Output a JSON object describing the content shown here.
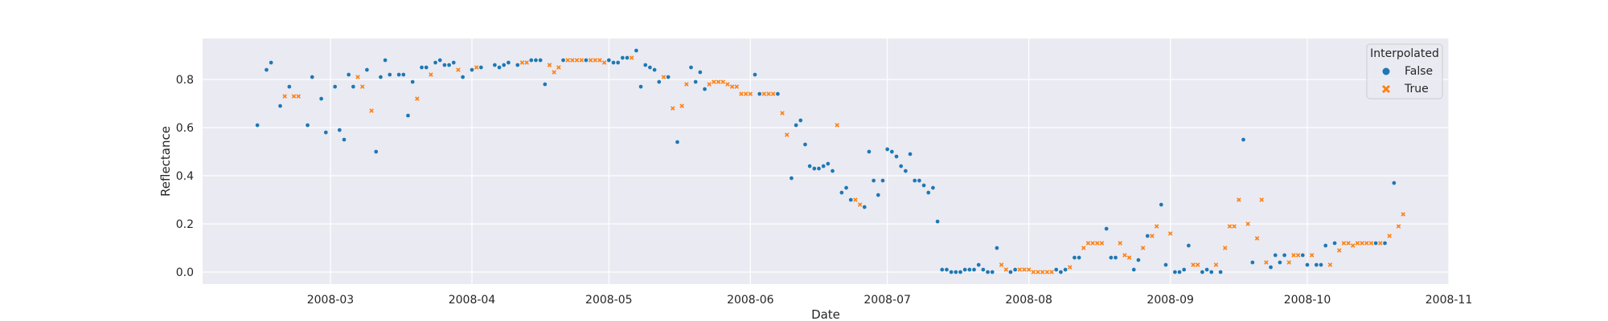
{
  "chart_data": {
    "type": "scatter",
    "xlabel": "Date",
    "ylabel": "Reflectance",
    "x_ticks": [
      "2008-03",
      "2008-04",
      "2008-05",
      "2008-06",
      "2008-07",
      "2008-08",
      "2008-09",
      "2008-10",
      "2008-11"
    ],
    "y_ticks": [
      "0.0",
      "0.2",
      "0.4",
      "0.6",
      "0.8"
    ],
    "xlim": [
      "2008-02-02",
      "2008-11-01"
    ],
    "ylim": [
      -0.05,
      0.97
    ],
    "grid": true,
    "legend": {
      "title": "Interpolated",
      "placement": "top-right"
    },
    "series": [
      {
        "name": "False",
        "marker": "circle",
        "color": "#1f77b4",
        "points": [
          [
            "2008-02-14",
            0.61
          ],
          [
            "2008-02-16",
            0.84
          ],
          [
            "2008-02-17",
            0.87
          ],
          [
            "2008-02-19",
            0.69
          ],
          [
            "2008-02-21",
            0.77
          ],
          [
            "2008-02-25",
            0.61
          ],
          [
            "2008-02-26",
            0.81
          ],
          [
            "2008-02-28",
            0.72
          ],
          [
            "2008-02-29",
            0.58
          ],
          [
            "2008-03-02",
            0.77
          ],
          [
            "2008-03-03",
            0.59
          ],
          [
            "2008-03-04",
            0.55
          ],
          [
            "2008-03-05",
            0.82
          ],
          [
            "2008-03-06",
            0.77
          ],
          [
            "2008-03-09",
            0.84
          ],
          [
            "2008-03-11",
            0.5
          ],
          [
            "2008-03-12",
            0.81
          ],
          [
            "2008-03-13",
            0.88
          ],
          [
            "2008-03-14",
            0.82
          ],
          [
            "2008-03-16",
            0.82
          ],
          [
            "2008-03-17",
            0.82
          ],
          [
            "2008-03-18",
            0.65
          ],
          [
            "2008-03-19",
            0.79
          ],
          [
            "2008-03-21",
            0.85
          ],
          [
            "2008-03-22",
            0.85
          ],
          [
            "2008-03-24",
            0.87
          ],
          [
            "2008-03-25",
            0.88
          ],
          [
            "2008-03-26",
            0.86
          ],
          [
            "2008-03-27",
            0.86
          ],
          [
            "2008-03-28",
            0.87
          ],
          [
            "2008-03-30",
            0.81
          ],
          [
            "2008-04-01",
            0.84
          ],
          [
            "2008-04-03",
            0.85
          ],
          [
            "2008-04-06",
            0.86
          ],
          [
            "2008-04-07",
            0.85
          ],
          [
            "2008-04-08",
            0.86
          ],
          [
            "2008-04-09",
            0.87
          ],
          [
            "2008-04-11",
            0.86
          ],
          [
            "2008-04-14",
            0.88
          ],
          [
            "2008-04-15",
            0.88
          ],
          [
            "2008-04-16",
            0.88
          ],
          [
            "2008-04-17",
            0.78
          ],
          [
            "2008-04-21",
            0.88
          ],
          [
            "2008-04-26",
            0.88
          ],
          [
            "2008-05-01",
            0.88
          ],
          [
            "2008-05-02",
            0.87
          ],
          [
            "2008-05-03",
            0.87
          ],
          [
            "2008-05-04",
            0.89
          ],
          [
            "2008-05-05",
            0.89
          ],
          [
            "2008-05-07",
            0.92
          ],
          [
            "2008-05-08",
            0.77
          ],
          [
            "2008-05-09",
            0.86
          ],
          [
            "2008-05-10",
            0.85
          ],
          [
            "2008-05-11",
            0.84
          ],
          [
            "2008-05-12",
            0.79
          ],
          [
            "2008-05-14",
            0.81
          ],
          [
            "2008-05-16",
            0.54
          ],
          [
            "2008-05-19",
            0.85
          ],
          [
            "2008-05-20",
            0.79
          ],
          [
            "2008-05-21",
            0.83
          ],
          [
            "2008-05-22",
            0.76
          ],
          [
            "2008-06-02",
            0.82
          ],
          [
            "2008-06-03",
            0.74
          ],
          [
            "2008-06-07",
            0.74
          ],
          [
            "2008-06-10",
            0.39
          ],
          [
            "2008-06-11",
            0.61
          ],
          [
            "2008-06-12",
            0.63
          ],
          [
            "2008-06-13",
            0.53
          ],
          [
            "2008-06-14",
            0.44
          ],
          [
            "2008-06-15",
            0.43
          ],
          [
            "2008-06-16",
            0.43
          ],
          [
            "2008-06-17",
            0.44
          ],
          [
            "2008-06-18",
            0.45
          ],
          [
            "2008-06-19",
            0.42
          ],
          [
            "2008-06-21",
            0.33
          ],
          [
            "2008-06-22",
            0.35
          ],
          [
            "2008-06-23",
            0.3
          ],
          [
            "2008-06-26",
            0.27
          ],
          [
            "2008-06-27",
            0.5
          ],
          [
            "2008-06-28",
            0.38
          ],
          [
            "2008-06-29",
            0.32
          ],
          [
            "2008-06-30",
            0.38
          ],
          [
            "2008-07-01",
            0.51
          ],
          [
            "2008-07-02",
            0.5
          ],
          [
            "2008-07-03",
            0.48
          ],
          [
            "2008-07-04",
            0.44
          ],
          [
            "2008-07-05",
            0.42
          ],
          [
            "2008-07-06",
            0.49
          ],
          [
            "2008-07-07",
            0.38
          ],
          [
            "2008-07-08",
            0.38
          ],
          [
            "2008-07-09",
            0.36
          ],
          [
            "2008-07-10",
            0.33
          ],
          [
            "2008-07-11",
            0.35
          ],
          [
            "2008-07-12",
            0.21
          ],
          [
            "2008-07-13",
            0.01
          ],
          [
            "2008-07-14",
            0.01
          ],
          [
            "2008-07-15",
            0.0
          ],
          [
            "2008-07-16",
            0.0
          ],
          [
            "2008-07-17",
            0.0
          ],
          [
            "2008-07-18",
            0.01
          ],
          [
            "2008-07-19",
            0.01
          ],
          [
            "2008-07-20",
            0.01
          ],
          [
            "2008-07-21",
            0.03
          ],
          [
            "2008-07-22",
            0.01
          ],
          [
            "2008-07-23",
            0.0
          ],
          [
            "2008-07-24",
            0.0
          ],
          [
            "2008-07-25",
            0.1
          ],
          [
            "2008-07-28",
            0.0
          ],
          [
            "2008-07-29",
            0.01
          ],
          [
            "2008-08-07",
            0.01
          ],
          [
            "2008-08-08",
            0.0
          ],
          [
            "2008-08-09",
            0.01
          ],
          [
            "2008-08-11",
            0.06
          ],
          [
            "2008-08-12",
            0.06
          ],
          [
            "2008-08-18",
            0.18
          ],
          [
            "2008-08-19",
            0.06
          ],
          [
            "2008-08-20",
            0.06
          ],
          [
            "2008-08-24",
            0.01
          ],
          [
            "2008-08-25",
            0.05
          ],
          [
            "2008-08-27",
            0.15
          ],
          [
            "2008-08-30",
            0.28
          ],
          [
            "2008-08-31",
            0.03
          ],
          [
            "2008-09-02",
            0.0
          ],
          [
            "2008-09-03",
            0.0
          ],
          [
            "2008-09-04",
            0.01
          ],
          [
            "2008-09-05",
            0.11
          ],
          [
            "2008-09-08",
            0.0
          ],
          [
            "2008-09-09",
            0.01
          ],
          [
            "2008-09-10",
            0.0
          ],
          [
            "2008-09-12",
            0.0
          ],
          [
            "2008-09-17",
            0.55
          ],
          [
            "2008-09-19",
            0.04
          ],
          [
            "2008-09-23",
            0.02
          ],
          [
            "2008-09-24",
            0.07
          ],
          [
            "2008-09-25",
            0.04
          ],
          [
            "2008-09-26",
            0.07
          ],
          [
            "2008-09-30",
            0.07
          ],
          [
            "2008-10-01",
            0.03
          ],
          [
            "2008-10-03",
            0.03
          ],
          [
            "2008-10-04",
            0.03
          ],
          [
            "2008-10-05",
            0.11
          ],
          [
            "2008-10-07",
            0.12
          ],
          [
            "2008-10-16",
            0.12
          ],
          [
            "2008-10-18",
            0.12
          ],
          [
            "2008-10-20",
            0.37
          ]
        ]
      },
      {
        "name": "True",
        "marker": "x",
        "color": "#ff7f0e",
        "points": [
          [
            "2008-02-20",
            0.73
          ],
          [
            "2008-02-22",
            0.73
          ],
          [
            "2008-02-23",
            0.73
          ],
          [
            "2008-03-07",
            0.81
          ],
          [
            "2008-03-08",
            0.77
          ],
          [
            "2008-03-10",
            0.67
          ],
          [
            "2008-03-20",
            0.72
          ],
          [
            "2008-03-23",
            0.82
          ],
          [
            "2008-03-29",
            0.84
          ],
          [
            "2008-04-02",
            0.85
          ],
          [
            "2008-04-12",
            0.87
          ],
          [
            "2008-04-13",
            0.87
          ],
          [
            "2008-04-18",
            0.86
          ],
          [
            "2008-04-19",
            0.83
          ],
          [
            "2008-04-20",
            0.85
          ],
          [
            "2008-04-22",
            0.88
          ],
          [
            "2008-04-23",
            0.88
          ],
          [
            "2008-04-24",
            0.88
          ],
          [
            "2008-04-25",
            0.88
          ],
          [
            "2008-04-27",
            0.88
          ],
          [
            "2008-04-28",
            0.88
          ],
          [
            "2008-04-29",
            0.88
          ],
          [
            "2008-04-30",
            0.87
          ],
          [
            "2008-05-06",
            0.89
          ],
          [
            "2008-05-13",
            0.81
          ],
          [
            "2008-05-15",
            0.68
          ],
          [
            "2008-05-17",
            0.69
          ],
          [
            "2008-05-18",
            0.78
          ],
          [
            "2008-05-23",
            0.78
          ],
          [
            "2008-05-24",
            0.79
          ],
          [
            "2008-05-25",
            0.79
          ],
          [
            "2008-05-26",
            0.79
          ],
          [
            "2008-05-27",
            0.78
          ],
          [
            "2008-05-28",
            0.77
          ],
          [
            "2008-05-29",
            0.77
          ],
          [
            "2008-05-30",
            0.74
          ],
          [
            "2008-05-31",
            0.74
          ],
          [
            "2008-06-01",
            0.74
          ],
          [
            "2008-06-04",
            0.74
          ],
          [
            "2008-06-05",
            0.74
          ],
          [
            "2008-06-06",
            0.74
          ],
          [
            "2008-06-08",
            0.66
          ],
          [
            "2008-06-09",
            0.57
          ],
          [
            "2008-06-20",
            0.61
          ],
          [
            "2008-06-24",
            0.3
          ],
          [
            "2008-06-25",
            0.28
          ],
          [
            "2008-07-26",
            0.03
          ],
          [
            "2008-07-27",
            0.01
          ],
          [
            "2008-07-30",
            0.01
          ],
          [
            "2008-07-31",
            0.01
          ],
          [
            "2008-08-01",
            0.01
          ],
          [
            "2008-08-02",
            0.0
          ],
          [
            "2008-08-03",
            0.0
          ],
          [
            "2008-08-04",
            0.0
          ],
          [
            "2008-08-05",
            0.0
          ],
          [
            "2008-08-06",
            0.0
          ],
          [
            "2008-08-10",
            0.02
          ],
          [
            "2008-08-13",
            0.1
          ],
          [
            "2008-08-14",
            0.12
          ],
          [
            "2008-08-15",
            0.12
          ],
          [
            "2008-08-16",
            0.12
          ],
          [
            "2008-08-17",
            0.12
          ],
          [
            "2008-08-21",
            0.12
          ],
          [
            "2008-08-22",
            0.07
          ],
          [
            "2008-08-23",
            0.06
          ],
          [
            "2008-08-26",
            0.1
          ],
          [
            "2008-08-28",
            0.15
          ],
          [
            "2008-08-29",
            0.19
          ],
          [
            "2008-09-01",
            0.16
          ],
          [
            "2008-09-06",
            0.03
          ],
          [
            "2008-09-07",
            0.03
          ],
          [
            "2008-09-11",
            0.03
          ],
          [
            "2008-09-13",
            0.1
          ],
          [
            "2008-09-14",
            0.19
          ],
          [
            "2008-09-15",
            0.19
          ],
          [
            "2008-09-16",
            0.3
          ],
          [
            "2008-09-18",
            0.2
          ],
          [
            "2008-09-20",
            0.14
          ],
          [
            "2008-09-21",
            0.3
          ],
          [
            "2008-09-22",
            0.04
          ],
          [
            "2008-09-27",
            0.04
          ],
          [
            "2008-09-28",
            0.07
          ],
          [
            "2008-09-29",
            0.07
          ],
          [
            "2008-10-02",
            0.07
          ],
          [
            "2008-10-06",
            0.03
          ],
          [
            "2008-10-08",
            0.09
          ],
          [
            "2008-10-09",
            0.12
          ],
          [
            "2008-10-10",
            0.12
          ],
          [
            "2008-10-11",
            0.11
          ],
          [
            "2008-10-12",
            0.12
          ],
          [
            "2008-10-13",
            0.12
          ],
          [
            "2008-10-14",
            0.12
          ],
          [
            "2008-10-15",
            0.12
          ],
          [
            "2008-10-17",
            0.12
          ],
          [
            "2008-10-19",
            0.15
          ],
          [
            "2008-10-21",
            0.19
          ],
          [
            "2008-10-22",
            0.24
          ]
        ]
      }
    ]
  }
}
